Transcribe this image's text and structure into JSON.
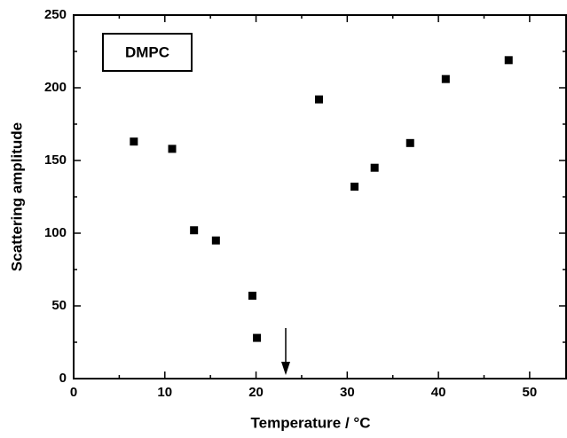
{
  "chart_data": {
    "type": "scatter",
    "x_label": "Temperature / °C",
    "y_label": "Scattering amplitude",
    "annotation": "DMPC",
    "series": [
      {
        "name": "DMPC",
        "color": "#000000",
        "x": [
          6.6,
          10.8,
          13.2,
          15.6,
          19.6,
          20.1,
          26.9,
          30.8,
          33.0,
          36.9,
          40.8,
          47.7
        ],
        "values": [
          163,
          158,
          102,
          95,
          57,
          28,
          192,
          132,
          145,
          162,
          206,
          219
        ]
      }
    ],
    "xlim": [
      0,
      54
    ],
    "ylim": [
      0,
      250
    ],
    "xticks": [
      0,
      10,
      20,
      30,
      40,
      50
    ],
    "yticks": [
      0,
      50,
      100,
      150,
      200,
      250
    ],
    "xminorticks": [
      5,
      15,
      25,
      35,
      45
    ],
    "yminorticks": [
      25,
      75,
      125,
      175,
      225
    ]
  }
}
